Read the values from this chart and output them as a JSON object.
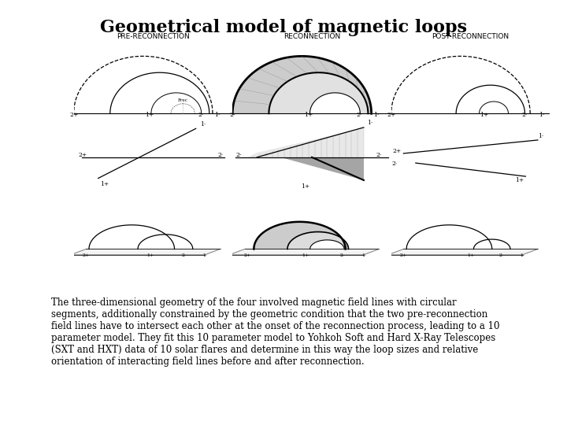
{
  "title": "Geometrical model of magnetic loops",
  "title_fontsize": 16,
  "title_fontweight": "bold",
  "col_labels": [
    "PRE-RECONNECTION",
    "RECONNECTION",
    "POST-RECONNECTION"
  ],
  "col_label_fontsize": 6.5,
  "background_color": "#ffffff",
  "description_text": "The three-dimensional geometry of the four involved magnetic field lines with circular\nsegments, additionally constrained by the geometric condition that the two pre-reconnection\nfield lines have to intersect each other at the onset of the reconnection process, leading to a 10\nparameter model. They fit this 10 parameter model to Yohkoh Soft and Hard X-Ray Telescopes\n(SXT and HXT) data of 10 solar flares and determine in this way the loop sizes and relative\norientation of interacting field lines before and after reconnection.",
  "desc_fontsize": 8.5,
  "figure_image_path": null,
  "grid_cols": 3,
  "grid_rows": 3
}
